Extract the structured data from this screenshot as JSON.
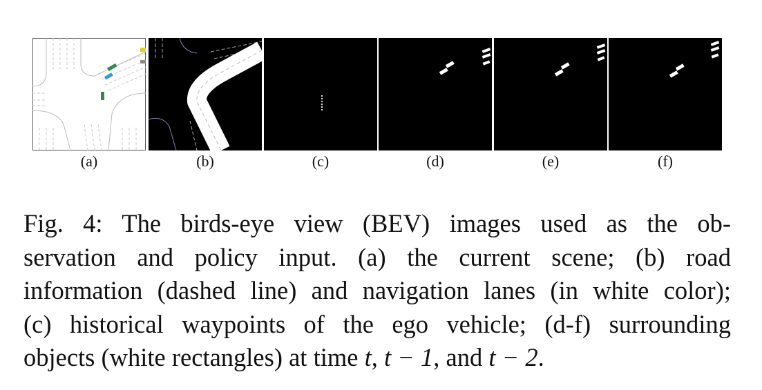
{
  "figure": {
    "panels": [
      {
        "id": "a",
        "label": "(a)"
      },
      {
        "id": "b",
        "label": "(b)"
      },
      {
        "id": "c",
        "label": "(c)"
      },
      {
        "id": "d",
        "label": "(d)"
      },
      {
        "id": "e",
        "label": "(e)"
      },
      {
        "id": "f",
        "label": "(f)"
      }
    ],
    "caption": {
      "line1": "Fig. 4: The birds-eye view (BEV) images used as the ob-",
      "line2": "servation and policy input. (a) the current scene; (b) road",
      "line3": "information (dashed line) and navigation lanes (in white color);",
      "line4": "(c) historical waypoints of the ego vehicle; (d-f) surrounding",
      "line5_prefix": "objects (white rectangles) at time ",
      "t": "t",
      "sep1": ", ",
      "t1": "t − 1",
      "sep2": ", and ",
      "t2": "t − 2",
      "end": "."
    }
  }
}
